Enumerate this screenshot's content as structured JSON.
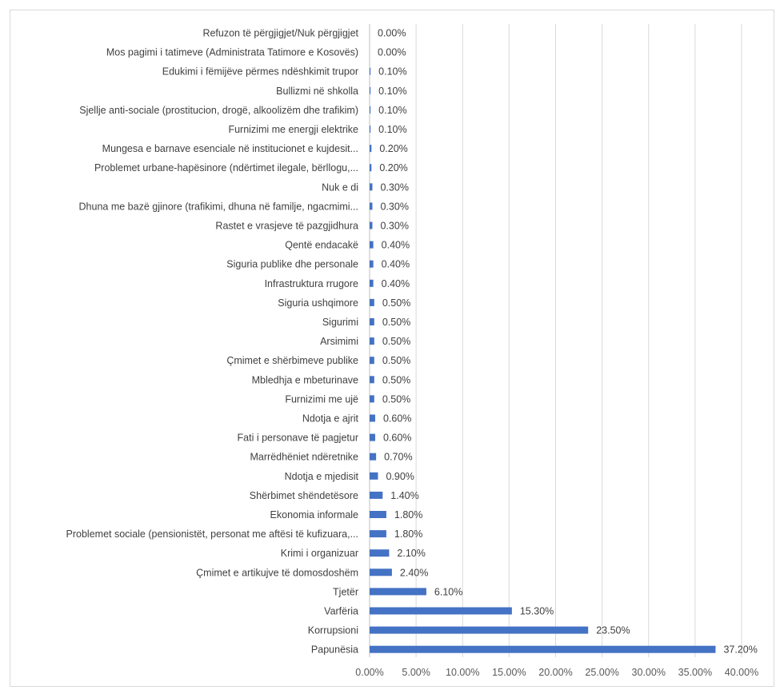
{
  "chart_data": {
    "type": "bar",
    "orientation": "horizontal",
    "title": "",
    "xlabel": "",
    "ylabel": "",
    "xlim": [
      0,
      40
    ],
    "grid": true,
    "legend": "none",
    "bar_color": "#4472c4",
    "x_ticks": [
      "0.00%",
      "5.00%",
      "10.00%",
      "15.00%",
      "20.00%",
      "25.00%",
      "30.00%",
      "35.00%",
      "40.00%"
    ],
    "categories": [
      "Refuzon të përgjigjet/Nuk përgjigjet",
      "Mos pagimi i tatimeve (Administrata Tatimore e Kosovës)",
      "Edukimi i fëmijëve përmes ndëshkimit trupor",
      "Bullizmi në shkolla",
      "Sjellje anti-sociale (prostitucion, drogë, alkoolizëm dhe trafikim)",
      "Furnizimi me energji elektrike",
      "Mungesa e barnave esenciale në institucionet e kujdesit...",
      "Problemet urbane-hapësinore (ndërtimet ilegale, bërllogu,...",
      "Nuk e di",
      "Dhuna me bazë gjinore (trafikimi, dhuna në familje, ngacmimi...",
      "Rastet e vrasjeve të pazgjidhura",
      "Qentë endacakë",
      "Siguria publike dhe personale",
      "Infrastruktura rrugore",
      "Siguria ushqimore",
      "Sigurimi",
      "Arsimimi",
      "Çmimet e shërbimeve publike",
      "Mbledhja e mbeturinave",
      "Furnizimi me ujë",
      "Ndotja e ajrit",
      "Fati i personave të pagjetur",
      "Marrëdhëniet ndëretnike",
      "Ndotja e mjedisit",
      "Shërbimet shëndetësore",
      "Ekonomia informale",
      "Problemet sociale (pensionistët, personat me aftësi të kufizuara,...",
      "Krimi i organizuar",
      "Çmimet e artikujve të domosdoshëm",
      "Tjetër",
      "Varfëria",
      "Korrupsioni",
      "Papunësia"
    ],
    "values": [
      0.0,
      0.0,
      0.1,
      0.1,
      0.1,
      0.1,
      0.2,
      0.2,
      0.3,
      0.3,
      0.3,
      0.4,
      0.4,
      0.4,
      0.5,
      0.5,
      0.5,
      0.5,
      0.5,
      0.5,
      0.6,
      0.6,
      0.7,
      0.9,
      1.4,
      1.8,
      1.8,
      2.1,
      2.4,
      6.1,
      15.3,
      23.5,
      37.2
    ],
    "value_labels": [
      "0.00%",
      "0.00%",
      "0.10%",
      "0.10%",
      "0.10%",
      "0.10%",
      "0.20%",
      "0.20%",
      "0.30%",
      "0.30%",
      "0.30%",
      "0.40%",
      "0.40%",
      "0.40%",
      "0.50%",
      "0.50%",
      "0.50%",
      "0.50%",
      "0.50%",
      "0.50%",
      "0.60%",
      "0.60%",
      "0.70%",
      "0.90%",
      "1.40%",
      "1.80%",
      "1.80%",
      "2.10%",
      "2.40%",
      "6.10%",
      "15.30%",
      "23.50%",
      "37.20%"
    ]
  }
}
